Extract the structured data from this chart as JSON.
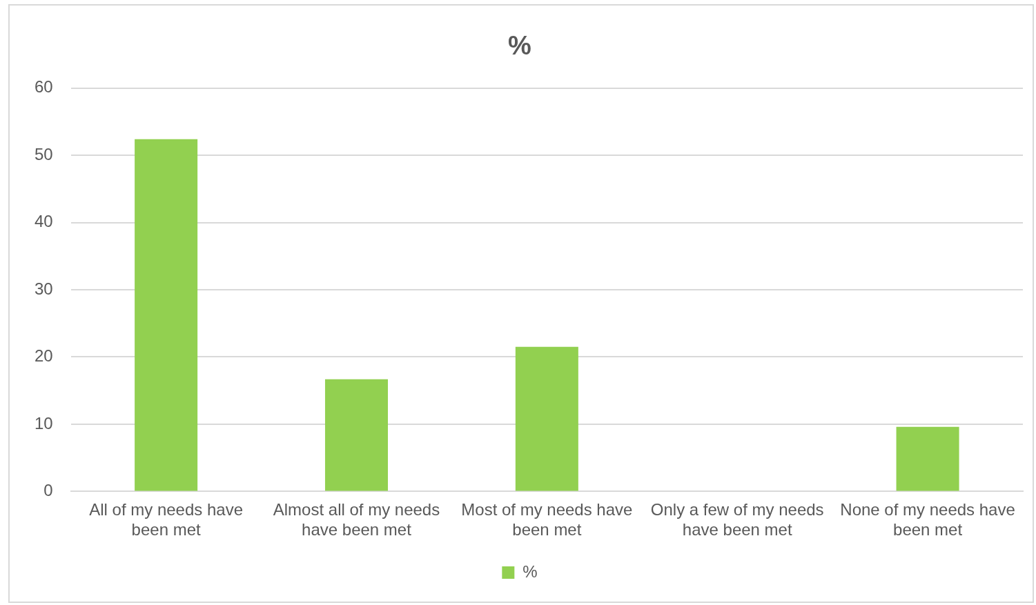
{
  "chart_data": {
    "type": "bar",
    "title": "%",
    "categories": [
      "All of my needs have been met",
      "Almost all of my needs have been met",
      "Most of my needs have been met",
      "Only a few of my needs have been met",
      "None of my needs have been met"
    ],
    "series": [
      {
        "name": "%",
        "color": "#92d050",
        "values": [
          52.4,
          16.7,
          21.5,
          0,
          9.6
        ]
      }
    ],
    "ylim": [
      0,
      60
    ],
    "yticks": [
      0,
      10,
      20,
      30,
      40,
      50,
      60
    ],
    "grid": "y",
    "legend": "bottom"
  }
}
